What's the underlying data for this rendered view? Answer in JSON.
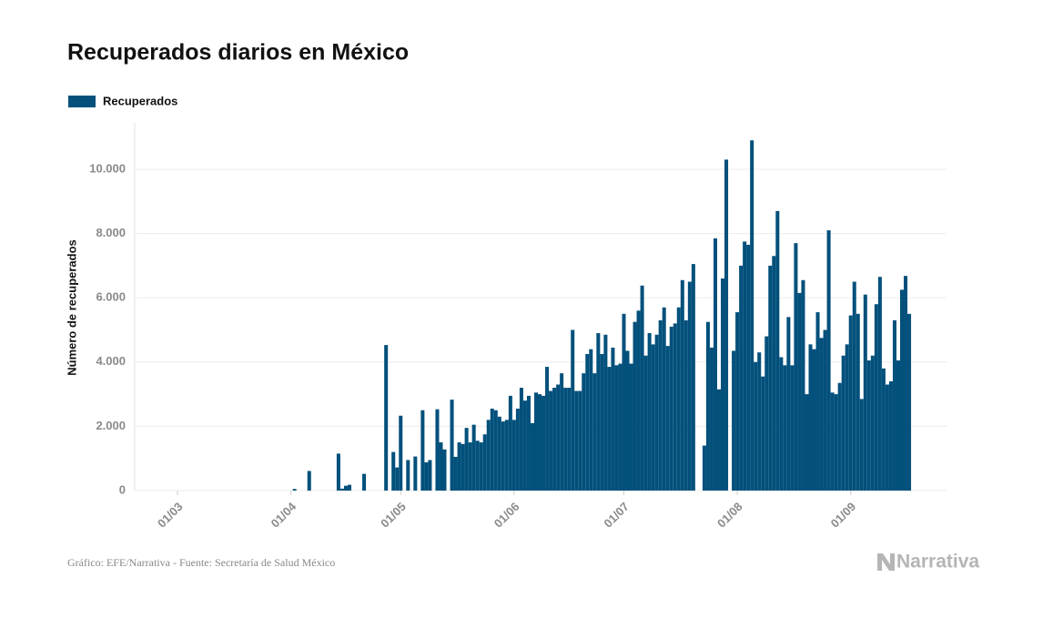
{
  "chart_data": {
    "type": "bar",
    "title": "Recuperados diarios en México",
    "ylabel": "Número de recuperados",
    "source": "Gráfico: EFE/Narrativa - Fuente: Secretaría de Salud México",
    "logo": "Narrativa",
    "grid": true,
    "ylim": [
      0,
      11500
    ],
    "yticks": [
      0,
      {
        "value": 2000,
        "label": "2.000"
      },
      {
        "value": 4000,
        "label": "4.000"
      },
      {
        "value": 6000,
        "label": "6.000"
      },
      {
        "value": 8000,
        "label": "8.000"
      },
      {
        "value": 10000,
        "label": "10.000"
      }
    ],
    "categories": [
      null,
      null,
      "01/03",
      null,
      null,
      null,
      null,
      null,
      null,
      null,
      null,
      null,
      null,
      null,
      null,
      null,
      null,
      null,
      null,
      null,
      null,
      null,
      null,
      null,
      null,
      null,
      null,
      null,
      null,
      null,
      null,
      null,
      null,
      "01/04",
      null,
      null,
      null,
      null,
      null,
      null,
      null,
      null,
      null,
      null,
      null,
      null,
      null,
      null,
      null,
      null,
      null,
      null,
      null,
      null,
      null,
      null,
      null,
      null,
      null,
      null,
      null,
      null,
      null,
      "01/05",
      null,
      null,
      null,
      null,
      null,
      null,
      null,
      null,
      null,
      null,
      null,
      null,
      null,
      null,
      null,
      null,
      null,
      null,
      null,
      null,
      null,
      null,
      null,
      null,
      null,
      null,
      null,
      null,
      null,
      null,
      "01/06",
      null,
      null,
      null,
      null,
      null,
      null,
      null,
      null,
      null,
      null,
      null,
      null,
      null,
      null,
      null,
      null,
      null,
      null,
      null,
      null,
      null,
      null,
      null,
      null,
      null,
      null,
      null,
      null,
      null,
      "01/07",
      null,
      null,
      null,
      null,
      null,
      null,
      null,
      null,
      null,
      null,
      null,
      null,
      null,
      null,
      null,
      null,
      null,
      null,
      null,
      null,
      null,
      null,
      null,
      null,
      null,
      null,
      null,
      null,
      null,
      null,
      "01/08",
      null,
      null,
      null,
      null,
      null,
      null,
      null,
      null,
      null,
      null,
      null,
      null,
      null,
      null,
      null,
      null,
      null,
      null,
      null,
      null,
      null,
      null,
      null,
      null,
      null,
      null,
      null,
      null,
      null,
      null,
      "01/09",
      null,
      null,
      null,
      null,
      null,
      null,
      null,
      null,
      null,
      null,
      null,
      null,
      null,
      null,
      null,
      null
    ],
    "series": [
      {
        "name": "Recuperados",
        "color": "#02507b",
        "values": [
          0,
          0,
          0,
          0,
          0,
          0,
          0,
          0,
          0,
          0,
          0,
          0,
          0,
          0,
          0,
          0,
          0,
          0,
          0,
          0,
          0,
          0,
          0,
          0,
          0,
          0,
          0,
          0,
          0,
          0,
          0,
          0,
          0,
          0,
          50,
          0,
          0,
          0,
          610,
          0,
          0,
          0,
          0,
          0,
          0,
          0,
          1150,
          60,
          150,
          180,
          0,
          0,
          0,
          520,
          0,
          0,
          0,
          0,
          0,
          4530,
          0,
          1200,
          720,
          2330,
          0,
          950,
          0,
          1060,
          0,
          2500,
          880,
          950,
          0,
          2530,
          1500,
          1280,
          0,
          2830,
          1050,
          1500,
          1450,
          1950,
          1500,
          2050,
          1550,
          1500,
          1750,
          2200,
          2550,
          2500,
          2300,
          2150,
          2200,
          2950,
          2200,
          2550,
          3200,
          2800,
          2950,
          2100,
          3050,
          3000,
          2950,
          3850,
          3100,
          3200,
          3300,
          3650,
          3200,
          3200,
          5000,
          3100,
          3100,
          3650,
          4250,
          4400,
          3650,
          4900,
          4250,
          4850,
          3850,
          4450,
          3900,
          3950,
          5500,
          4350,
          3950,
          5250,
          5600,
          6380,
          4200,
          4900,
          4550,
          4850,
          5300,
          5700,
          4500,
          5100,
          5200,
          5700,
          6550,
          5300,
          6500,
          7050,
          0,
          0,
          1400,
          5250,
          4450,
          7850,
          3150,
          6600,
          10300,
          0,
          4350,
          5550,
          7000,
          7750,
          7650,
          10900,
          4000,
          4300,
          3550,
          4800,
          7000,
          7300,
          8700,
          4150,
          3900,
          5400,
          3900,
          7700,
          6150,
          6550,
          3000,
          4550,
          4400,
          5550,
          4750,
          5000,
          8100,
          3050,
          3000,
          3350,
          4200,
          4550,
          5450,
          6500,
          5500,
          2850,
          6100,
          4050,
          4200,
          5800,
          6650,
          3800,
          3300,
          3400,
          5300,
          4050,
          6250,
          6680,
          5500
        ]
      }
    ]
  }
}
